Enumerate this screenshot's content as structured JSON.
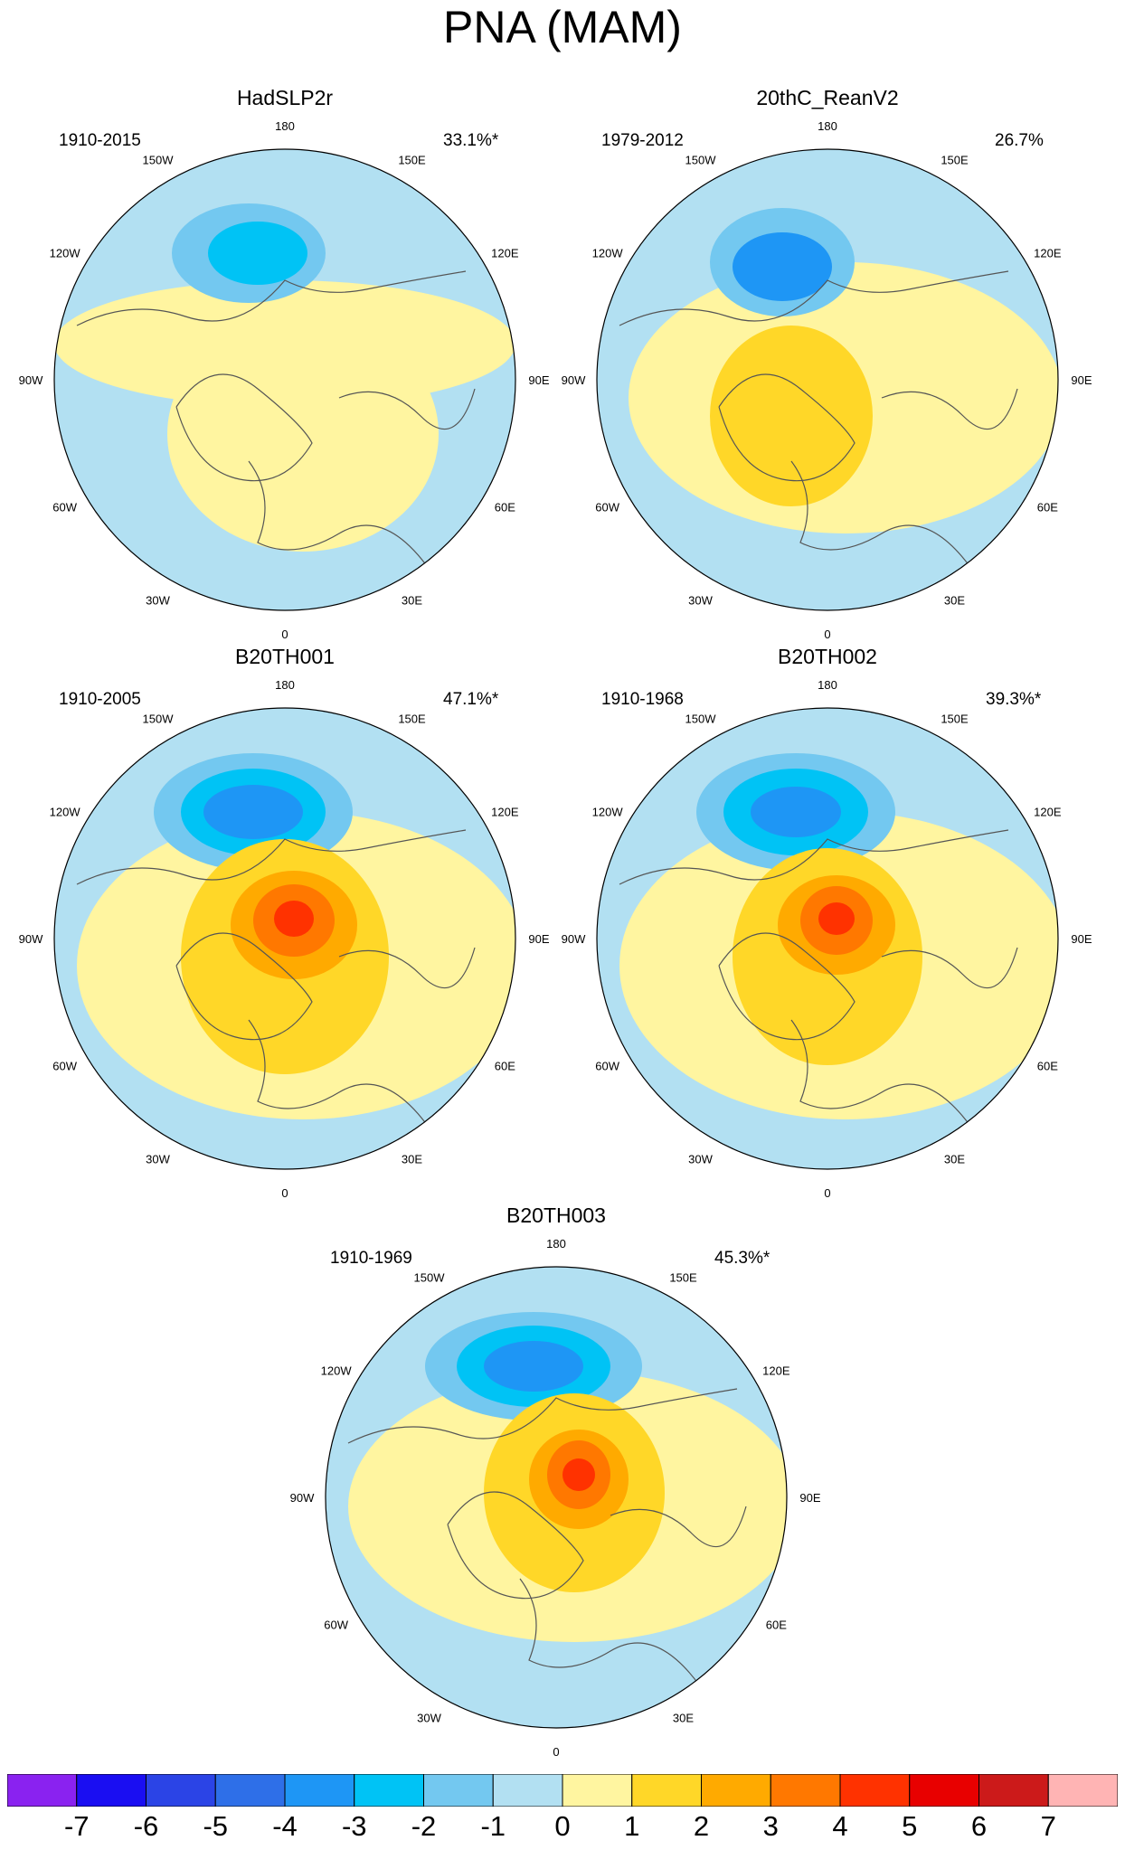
{
  "title": "PNA (MAM)",
  "lon_labels": [
    "180",
    "150E",
    "120E",
    "90E",
    "60E",
    "30E",
    "0",
    "30W",
    "60W",
    "90W",
    "120W",
    "150W"
  ],
  "panels": [
    {
      "title": "HadSLP2r",
      "period": "1910-2015",
      "pct": "33.1%*"
    },
    {
      "title": "20thC_ReanV2",
      "period": "1979-2012",
      "pct": "26.7%"
    },
    {
      "title": "B20TH001",
      "period": "1910-2005",
      "pct": "47.1%*"
    },
    {
      "title": "B20TH002",
      "period": "1910-1968",
      "pct": "39.3%*"
    },
    {
      "title": "B20TH003",
      "period": "1910-1969",
      "pct": "45.3%*"
    }
  ],
  "colorbar": {
    "labels": [
      "-7",
      "-6",
      "-5",
      "-4",
      "-3",
      "-2",
      "-1",
      "0",
      "1",
      "2",
      "3",
      "4",
      "5",
      "6",
      "7"
    ],
    "colors": [
      "#8a22f0",
      "#1a0ef2",
      "#2b44e6",
      "#2e6fe8",
      "#1e96f5",
      "#00c3f5",
      "#73c8f0",
      "#b2e0f2",
      "#fff5a0",
      "#ffd728",
      "#ffaa00",
      "#ff7800",
      "#ff3200",
      "#e80000",
      "#cc1a1a",
      "#ffb4b4"
    ]
  }
}
